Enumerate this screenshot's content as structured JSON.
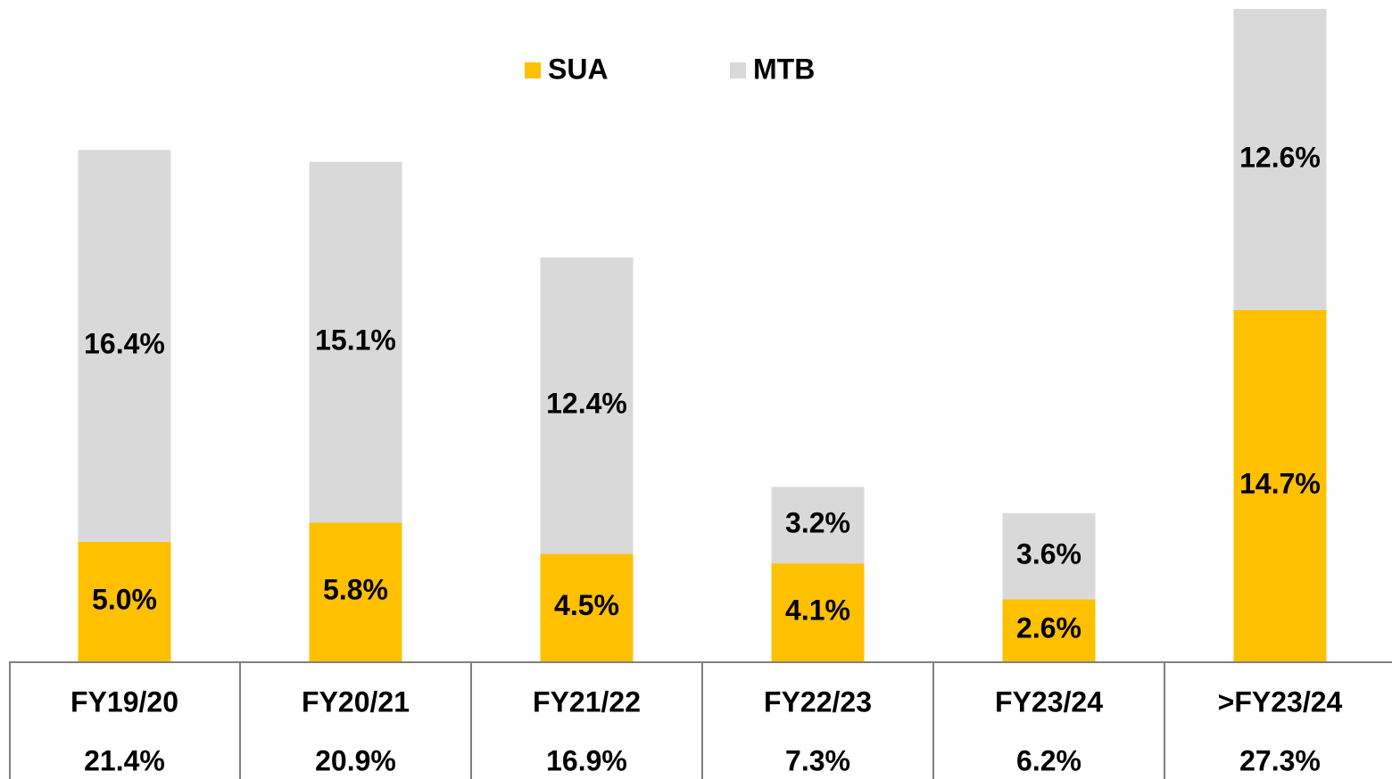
{
  "chart_data": {
    "type": "stacked-bar",
    "categories": [
      "FY19/20",
      "FY20/21",
      "FY21/22",
      "FY22/23",
      "FY23/24",
      ">FY23/24"
    ],
    "series": [
      {
        "name": "SUA",
        "color": "#ffc000",
        "values": [
          5.0,
          5.8,
          4.5,
          4.1,
          2.6,
          14.7
        ],
        "value_labels": [
          "5.0%",
          "5.8%",
          "4.5%",
          "4.1%",
          "2.6%",
          "14.7%"
        ]
      },
      {
        "name": "MTB",
        "color": "#d9d9d9",
        "values": [
          16.4,
          15.1,
          12.4,
          3.2,
          3.6,
          12.6
        ],
        "value_labels": [
          "16.4%",
          "15.1%",
          "12.4%",
          "3.2%",
          "3.6%",
          "12.6%"
        ]
      }
    ],
    "totals": [
      21.4,
      20.9,
      16.9,
      7.3,
      6.2,
      27.3
    ],
    "total_labels": [
      "21.4%",
      "20.9%",
      "16.9%",
      "7.3%",
      "6.2%",
      "27.3%"
    ],
    "ylim": [
      0,
      27.6
    ]
  }
}
